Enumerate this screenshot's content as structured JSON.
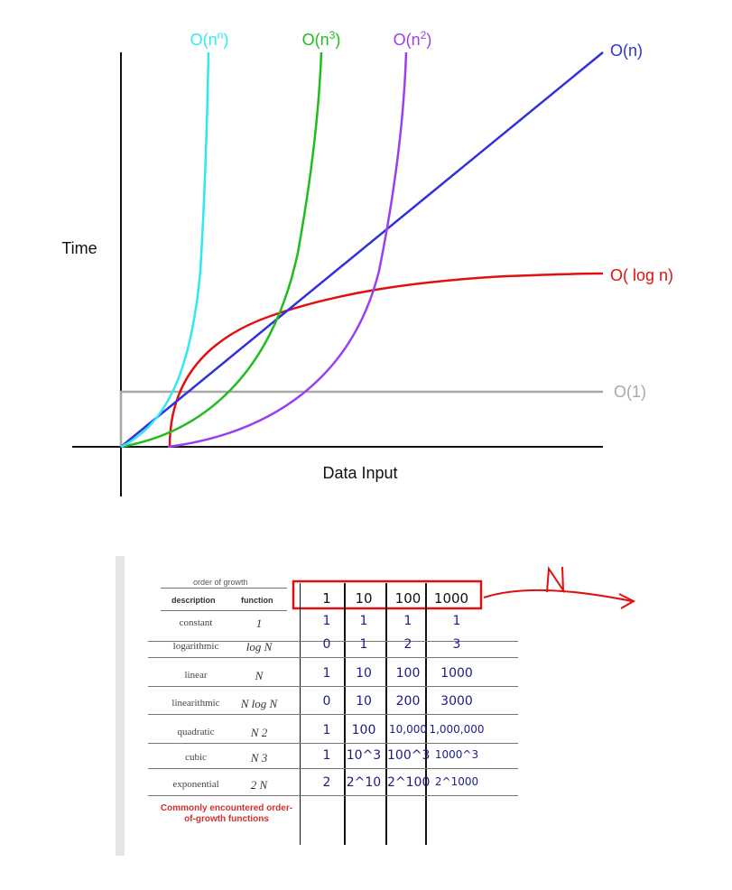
{
  "chart_data": {
    "type": "line",
    "xlabel": "Data Input",
    "ylabel": "Time",
    "grid": false,
    "series": [
      {
        "name": "O(n^n)",
        "label_base": "O(n",
        "label_sup": "n",
        "color": "#2ee8f2"
      },
      {
        "name": "O(n^3)",
        "label_base": "O(n",
        "label_sup": "3",
        "color": "#1ebc1e"
      },
      {
        "name": "O(n^2)",
        "label_base": "O(n",
        "label_sup": "2",
        "color": "#9a3ff0"
      },
      {
        "name": "O(n)",
        "label_base": "O(n)",
        "label_sup": "",
        "color": "#3030dd"
      },
      {
        "name": "O(log n)",
        "label_base": "O( log n)",
        "label_sup": "",
        "color": "#e01010"
      },
      {
        "name": "O(1)",
        "label_base": "O(1)",
        "label_sup": "",
        "color": "#a8a8a8"
      }
    ]
  },
  "table": {
    "caption": "order of growth",
    "col_description": "description",
    "col_function": "function",
    "headers": [
      "1",
      "10",
      "100",
      "1000"
    ],
    "rows": [
      {
        "description": "constant",
        "function": "1",
        "values": [
          "1",
          "1",
          "1",
          "1"
        ]
      },
      {
        "description": "logarithmic",
        "function": "log N",
        "values": [
          "0",
          "1",
          "2",
          "3"
        ]
      },
      {
        "description": "linear",
        "function": "N",
        "values": [
          "1",
          "10",
          "100",
          "1000"
        ]
      },
      {
        "description": "linearithmic",
        "function": "N log N",
        "values": [
          "0",
          "10",
          "200",
          "3000"
        ]
      },
      {
        "description": "quadratic",
        "function": "N 2",
        "values": [
          "1",
          "100",
          "10,000",
          "1,000,000"
        ]
      },
      {
        "description": "cubic",
        "function": "N 3",
        "values": [
          "1",
          "10^3",
          "100^3",
          "1000^3"
        ]
      },
      {
        "description": "exponential",
        "function": "2 N",
        "values": [
          "2",
          "2^10",
          "2^100",
          "2^1000"
        ]
      }
    ],
    "footer": "Commonly encountered order-of-growth functions",
    "annotation": "N"
  },
  "colors": {
    "highlight": "#e01010",
    "handwriting": "#1b1b8a"
  }
}
